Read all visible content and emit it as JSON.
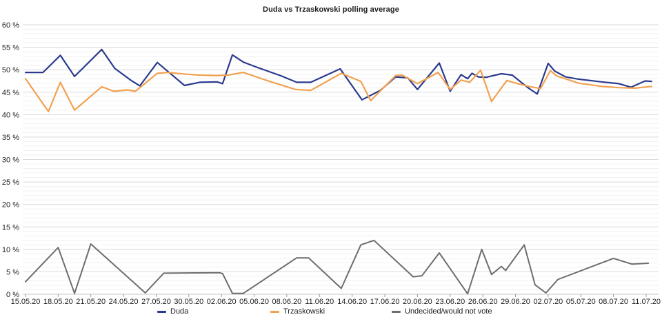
{
  "title": "Duda vs Trzaskowski polling average",
  "chart_data": {
    "type": "line",
    "title": "Duda vs Trzaskowski polling average",
    "grid": true,
    "legend_position": "bottom",
    "x_axis": {
      "unit": "date",
      "tick_interval_days": 3,
      "domain_days": [
        0,
        57.5
      ],
      "tick_labels": [
        "15.05.20",
        "18.05.20",
        "21.05.20",
        "24.05.20",
        "27.05.20",
        "30.05.20",
        "02.06.20",
        "05.06.20",
        "08.06.20",
        "11.06.20",
        "14.06.20",
        "17.06.20",
        "20.06.20",
        "23.06.20",
        "26.06.20",
        "29.06.20",
        "02.07.20",
        "05.07.20",
        "08.07.20",
        "11.07.20"
      ]
    },
    "y_axis": {
      "min": 0,
      "max": 60,
      "major_step": 5,
      "minor_step": 1,
      "tick_labels": [
        "60 %",
        "55 %",
        "50 %",
        "45 %",
        "40 %",
        "35 %",
        "30 %",
        "25 %",
        "20 %",
        "15 %",
        "10 %",
        "5 %",
        "0 %"
      ]
    },
    "series": [
      {
        "name": "Duda",
        "color": "#2b3a8e",
        "points": [
          [
            0,
            49.4
          ],
          [
            1.6,
            49.4
          ],
          [
            3.2,
            53.2
          ],
          [
            4.5,
            48.5
          ],
          [
            7,
            54.5
          ],
          [
            8.2,
            50.3
          ],
          [
            9.7,
            47.6
          ],
          [
            10.5,
            46.4
          ],
          [
            12.1,
            51.6
          ],
          [
            14.6,
            46.5
          ],
          [
            16,
            47.2
          ],
          [
            17.6,
            47.3
          ],
          [
            18.1,
            46.9
          ],
          [
            19,
            53.3
          ],
          [
            20,
            51.7
          ],
          [
            21.3,
            50.5
          ],
          [
            23.4,
            48.7
          ],
          [
            24.9,
            47.2
          ],
          [
            26.2,
            47.2
          ],
          [
            28.9,
            50.2
          ],
          [
            30.9,
            43.3
          ],
          [
            32.6,
            45.4
          ],
          [
            34,
            48.4
          ],
          [
            35.1,
            48.2
          ],
          [
            36,
            45.6
          ],
          [
            38,
            51.5
          ],
          [
            39,
            45.2
          ],
          [
            40,
            48.9
          ],
          [
            40.6,
            48.0
          ],
          [
            41,
            49.2
          ],
          [
            41.6,
            48.4
          ],
          [
            42.3,
            48.3
          ],
          [
            43.7,
            49.1
          ],
          [
            44.7,
            48.8
          ],
          [
            46.2,
            45.9
          ],
          [
            47,
            44.6
          ],
          [
            48,
            51.4
          ],
          [
            48.6,
            49.7
          ],
          [
            49.6,
            48.4
          ],
          [
            50.8,
            47.9
          ],
          [
            52.9,
            47.3
          ],
          [
            54.5,
            46.9
          ],
          [
            55.6,
            46.1
          ],
          [
            56.9,
            47.5
          ],
          [
            57.5,
            47.4
          ]
        ]
      },
      {
        "name": "Trzaskowski",
        "color": "#f2a14f",
        "points": [
          [
            0,
            48.0
          ],
          [
            2.1,
            40.7
          ],
          [
            3.2,
            47.2
          ],
          [
            4.5,
            41.0
          ],
          [
            7,
            46.2
          ],
          [
            8.1,
            45.2
          ],
          [
            9.4,
            45.5
          ],
          [
            10.1,
            45.2
          ],
          [
            12.1,
            49.2
          ],
          [
            13,
            49.4
          ],
          [
            14.8,
            49.0
          ],
          [
            16,
            48.8
          ],
          [
            17.6,
            48.7
          ],
          [
            18.6,
            48.8
          ],
          [
            20,
            49.4
          ],
          [
            22.4,
            47.4
          ],
          [
            24.8,
            45.6
          ],
          [
            26.2,
            45.4
          ],
          [
            29,
            49.2
          ],
          [
            30.8,
            47.4
          ],
          [
            31.7,
            43.1
          ],
          [
            34,
            48.7
          ],
          [
            34.6,
            48.8
          ],
          [
            36,
            46.9
          ],
          [
            37.9,
            49.4
          ],
          [
            39,
            45.6
          ],
          [
            40,
            47.7
          ],
          [
            40.8,
            47.2
          ],
          [
            41.8,
            49.9
          ],
          [
            42.8,
            42.9
          ],
          [
            44.2,
            47.6
          ],
          [
            45.2,
            46.9
          ],
          [
            46.4,
            46.2
          ],
          [
            47.3,
            45.8
          ],
          [
            48.2,
            49.8
          ],
          [
            48.8,
            48.6
          ],
          [
            50.8,
            47.0
          ],
          [
            52.9,
            46.3
          ],
          [
            54.5,
            46.0
          ],
          [
            56,
            45.9
          ],
          [
            57.5,
            46.3
          ]
        ]
      },
      {
        "name": "Undecided/would not vote",
        "color": "#6d6d6d",
        "points": [
          [
            0,
            2.8
          ],
          [
            3,
            10.4
          ],
          [
            4.5,
            0.2
          ],
          [
            6,
            11.2
          ],
          [
            11,
            0.3
          ],
          [
            12.7,
            4.7
          ],
          [
            17.8,
            4.8
          ],
          [
            18.1,
            4.6
          ],
          [
            19,
            0.2
          ],
          [
            20,
            0.2
          ],
          [
            24.9,
            8.1
          ],
          [
            26,
            8.1
          ],
          [
            29,
            1.3
          ],
          [
            30.8,
            11.0
          ],
          [
            32,
            12.0
          ],
          [
            35.6,
            3.9
          ],
          [
            36.4,
            4.1
          ],
          [
            38,
            9.2
          ],
          [
            40.6,
            0.1
          ],
          [
            41.9,
            10.0
          ],
          [
            42.8,
            4.4
          ],
          [
            43.7,
            6.2
          ],
          [
            44.1,
            5.3
          ],
          [
            45.8,
            11.0
          ],
          [
            46.8,
            2.1
          ],
          [
            47.8,
            0.3
          ],
          [
            48.9,
            3.3
          ],
          [
            54,
            8.0
          ],
          [
            55.7,
            6.7
          ],
          [
            57.2,
            6.9
          ]
        ]
      }
    ]
  },
  "legend": {
    "items": [
      {
        "label": "Duda"
      },
      {
        "label": "Trzaskowski"
      },
      {
        "label": "Undecided/would not vote"
      }
    ]
  }
}
